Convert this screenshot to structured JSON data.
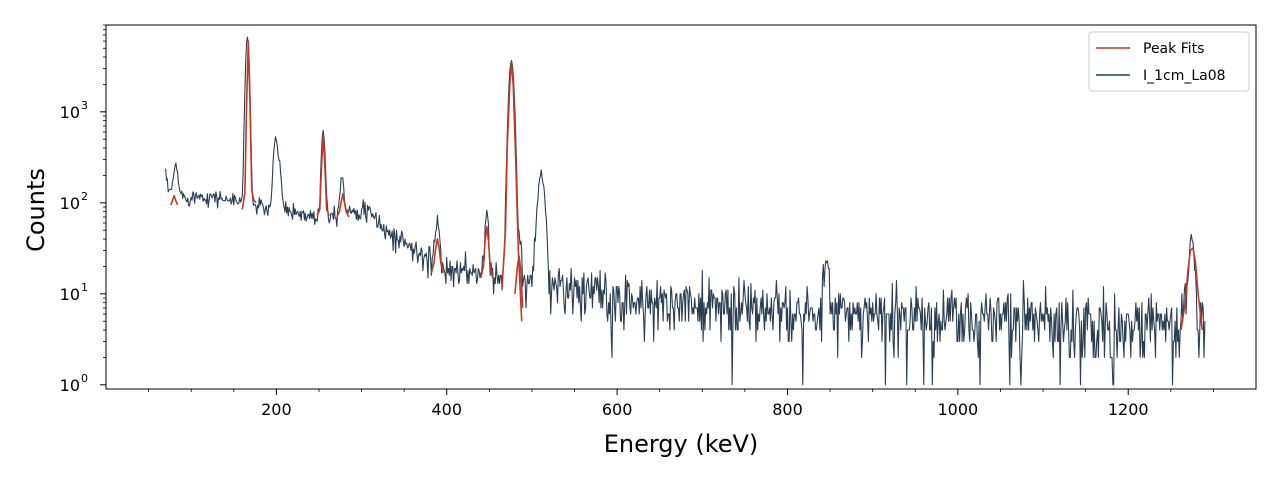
{
  "chart_data": {
    "type": "line",
    "xlabel": "Energy (keV)",
    "ylabel": "Counts",
    "xlim": [
      0,
      1350
    ],
    "ylim": [
      0.9,
      9000
    ],
    "y_scale": "log",
    "grid": false,
    "legend_position": "top-right",
    "x_ticks": [
      200,
      400,
      600,
      800,
      1000,
      1200
    ],
    "x_tick_labels": [
      "200",
      "400",
      "600",
      "800",
      "1000",
      "1200"
    ],
    "y_ticks": [
      1,
      10,
      100,
      1000
    ],
    "y_tick_labels": [
      {
        "base": "10",
        "exp": "0"
      },
      {
        "base": "10",
        "exp": "1"
      },
      {
        "base": "10",
        "exp": "2"
      },
      {
        "base": "10",
        "exp": "3"
      }
    ],
    "series": [
      {
        "name": "Peak Fits",
        "color": "#c0392b",
        "segments": [
          {
            "x": [
              76,
              78,
              80,
              82,
              84
            ],
            "y": [
              95,
              105,
              120,
              105,
              95
            ]
          },
          {
            "x": [
              160,
              163,
              165,
              167,
              169,
              171,
              173,
              176
            ],
            "y": [
              85,
              130,
              1200,
              6000,
              1200,
              140,
              110,
              100
            ]
          },
          {
            "x": [
              248,
              251,
              253,
              255,
              257,
              259,
              262
            ],
            "y": [
              72,
              85,
              250,
              550,
              250,
              85,
              72
            ]
          },
          {
            "x": [
              271,
              274,
              276,
              278,
              280,
              282,
              285
            ],
            "y": [
              70,
              80,
              100,
              125,
              100,
              80,
              70
            ]
          },
          {
            "x": [
              382,
              385,
              387,
              389,
              391,
              393,
              396
            ],
            "y": [
              17,
              22,
              32,
              40,
              32,
              22,
              17
            ]
          },
          {
            "x": [
              440,
              443,
              445,
              447,
              449,
              451,
              454
            ],
            "y": [
              15,
              20,
              38,
              55,
              38,
              20,
              15
            ]
          },
          {
            "x": [
              465,
              469,
              471,
              474,
              476,
              478,
              481,
              484,
              488
            ],
            "y": [
              12,
              50,
              400,
              2000,
              3500,
              2000,
              300,
              30,
              5
            ]
          },
          {
            "x": [
              480,
              483,
              485,
              487,
              489
            ],
            "y": [
              10,
              20,
              26,
              18,
              7
            ]
          },
          {
            "x": [
              1262,
              1267,
              1270,
              1273,
              1276,
              1279,
              1282,
              1287
            ],
            "y": [
              4,
              8,
              18,
              30,
              32,
              22,
              10,
              4
            ]
          }
        ]
      },
      {
        "name": "I_1cm_La08",
        "color": "#2c3e50",
        "samples_per_keV": 1,
        "x_range": [
          70,
          1290
        ],
        "baseline": [
          [
            70,
            140
          ],
          [
            80,
            130
          ],
          [
            95,
            115
          ],
          [
            110,
            120
          ],
          [
            130,
            115
          ],
          [
            150,
            105
          ],
          [
            170,
            95
          ],
          [
            200,
            85
          ],
          [
            220,
            80
          ],
          [
            240,
            72
          ],
          [
            260,
            75
          ],
          [
            280,
            82
          ],
          [
            300,
            85
          ],
          [
            315,
            70
          ],
          [
            330,
            48
          ],
          [
            350,
            37
          ],
          [
            370,
            27
          ],
          [
            390,
            21
          ],
          [
            410,
            18
          ],
          [
            440,
            17
          ],
          [
            470,
            14
          ],
          [
            500,
            13
          ],
          [
            540,
            11
          ],
          [
            580,
            10
          ],
          [
            620,
            9
          ],
          [
            680,
            8
          ],
          [
            760,
            7
          ],
          [
            850,
            6.5
          ],
          [
            950,
            6
          ],
          [
            1050,
            5.5
          ],
          [
            1150,
            5
          ],
          [
            1250,
            4.5
          ],
          [
            1290,
            4.2
          ]
        ],
        "peaks": [
          {
            "x": 67,
            "height": 250,
            "width": 2
          },
          {
            "x": 82,
            "height": 140,
            "width": 2
          },
          {
            "x": 166,
            "height": 6500,
            "width": 1.8
          },
          {
            "x": 199,
            "height": 450,
            "width": 2
          },
          {
            "x": 204,
            "height": 170,
            "width": 1.8
          },
          {
            "x": 255,
            "height": 550,
            "width": 1.8
          },
          {
            "x": 277,
            "height": 125,
            "width": 1.8
          },
          {
            "x": 389,
            "height": 40,
            "width": 2
          },
          {
            "x": 447,
            "height": 55,
            "width": 1.8
          },
          {
            "x": 476,
            "height": 3600,
            "width": 2.6
          },
          {
            "x": 486,
            "height": 26,
            "width": 1.5
          },
          {
            "x": 511,
            "height": 195,
            "width": 3.5
          },
          {
            "x": 846,
            "height": 22,
            "width": 2.5
          },
          {
            "x": 1274,
            "height": 38,
            "width": 3
          }
        ]
      }
    ]
  }
}
